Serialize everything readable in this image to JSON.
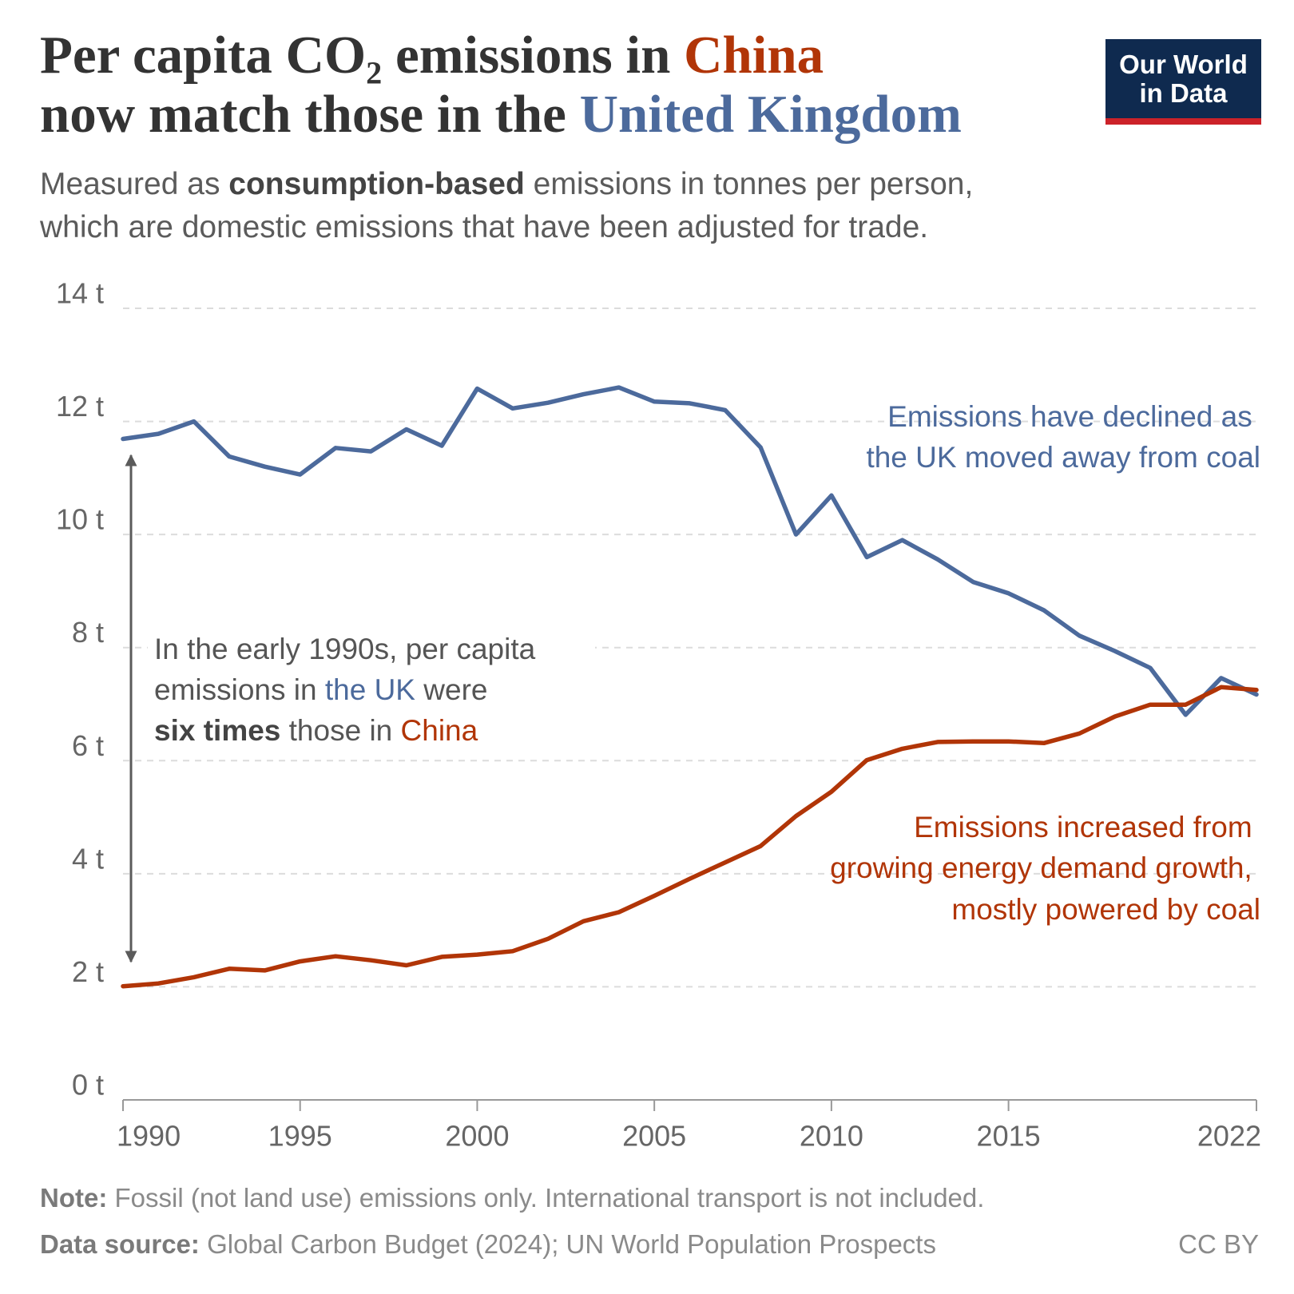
{
  "chart_data": {
    "type": "line",
    "title": {
      "line1": [
        "Per capita CO₂ emissions in",
        "China"
      ],
      "line2": [
        "now match those in the",
        "United Kingdom"
      ]
    },
    "subtitle": {
      "line1": [
        "Measured as",
        "consumption-based",
        "emissions in tonnes per person,"
      ],
      "line2": "which are domestic emissions that have been adjusted for trade."
    },
    "logo": [
      "Our World",
      "in Data"
    ],
    "x": [
      1990,
      1991,
      1992,
      1993,
      1994,
      1995,
      1996,
      1997,
      1998,
      1999,
      2000,
      2001,
      2002,
      2003,
      2004,
      2005,
      2006,
      2007,
      2008,
      2009,
      2010,
      2011,
      2012,
      2013,
      2014,
      2015,
      2016,
      2017,
      2018,
      2019,
      2020,
      2021,
      2022
    ],
    "series": [
      {
        "name": "United Kingdom",
        "color": "#4c6a9c",
        "values": [
          11.69,
          11.78,
          12.0,
          11.38,
          11.2,
          11.06,
          11.53,
          11.47,
          11.86,
          11.57,
          12.58,
          12.23,
          12.33,
          12.48,
          12.6,
          12.35,
          12.32,
          12.2,
          11.54,
          10.0,
          10.69,
          9.6,
          9.9,
          9.56,
          9.16,
          8.96,
          8.66,
          8.21,
          7.94,
          7.64,
          6.81,
          7.46,
          7.17
        ]
      },
      {
        "name": "China",
        "color": "#b13507",
        "values": [
          2.01,
          2.06,
          2.17,
          2.32,
          2.29,
          2.45,
          2.54,
          2.47,
          2.38,
          2.53,
          2.57,
          2.63,
          2.85,
          3.16,
          3.32,
          3.61,
          3.91,
          4.2,
          4.49,
          5.02,
          5.45,
          6.01,
          6.21,
          6.33,
          6.34,
          6.34,
          6.31,
          6.48,
          6.78,
          6.99,
          6.99,
          7.3,
          7.25
        ]
      }
    ],
    "xlim": [
      1990,
      2022
    ],
    "ylim": [
      0,
      14
    ],
    "xticks": [
      1990,
      1995,
      2000,
      2005,
      2010,
      2015,
      2022
    ],
    "yticks": [
      {
        "value": 0,
        "label": "0 t"
      },
      {
        "value": 2,
        "label": "2 t"
      },
      {
        "value": 4,
        "label": "4 t"
      },
      {
        "value": 6,
        "label": "6 t"
      },
      {
        "value": 8,
        "label": "8 t"
      },
      {
        "value": 10,
        "label": "10 t"
      },
      {
        "value": 12,
        "label": "12 t"
      },
      {
        "value": 14,
        "label": "14 t"
      }
    ],
    "grid": true,
    "annotations": [
      [
        "Emissions have declined as",
        "the UK moved away from coal"
      ],
      [
        "Emissions increased from",
        "growing energy demand growth,",
        "mostly powered by coal"
      ],
      {
        "line1": "In the early 1990s, per capita",
        "line2": [
          "emissions in",
          "the UK",
          "were"
        ],
        "line3": [
          "six times",
          "those in",
          "China"
        ]
      }
    ],
    "note": [
      "Note:",
      "Fossil (not land use) emissions only. International transport is not included."
    ],
    "source": [
      "Data source:",
      "Global Carbon Budget (2024); UN World Population Prospects"
    ],
    "license": "CC BY"
  }
}
